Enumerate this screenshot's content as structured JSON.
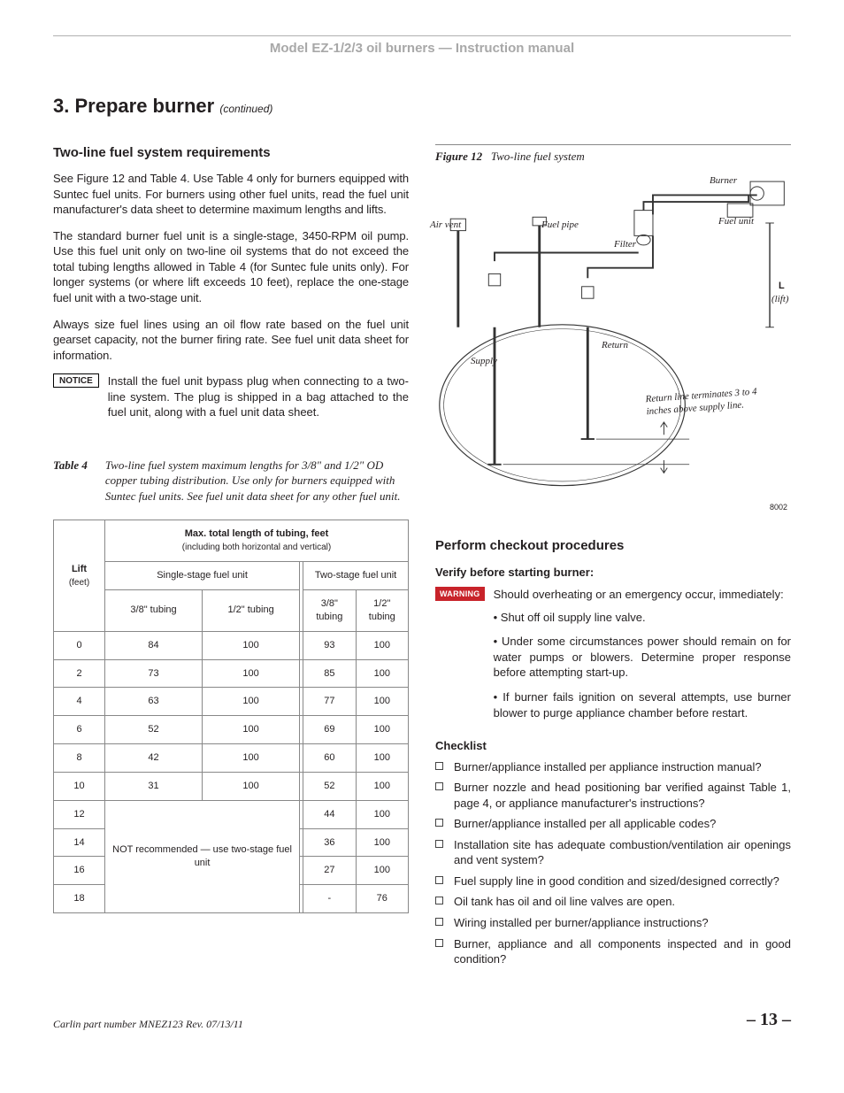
{
  "header": "Model EZ-1/2/3 oil burners — Instruction manual",
  "section": {
    "num": "3.",
    "title": "Prepare burner",
    "cont": "(continued)"
  },
  "left": {
    "h": "Two-line fuel system requirements",
    "p1": "See Figure 12 and Table 4. Use Table 4 only for burners equipped with Suntec fuel units. For burners using other fuel units, read the fuel unit manufacturer's data sheet to determine maximum lengths and lifts.",
    "p2": "The standard burner fuel unit is a single-stage, 3450-RPM oil pump. Use this fuel unit only on two-line oil systems that do not exceed the total tubing lengths allowed in Table 4 (for Suntec fule units only). For longer systems (or where lift exceeds 10 feet), replace the one-stage fuel unit with a two-stage unit.",
    "p3": "Always size fuel lines using an oil flow rate based on the fuel unit gearset capacity, not the burner firing rate. See fuel unit data sheet for information.",
    "notice_label": "NOTICE",
    "notice_text": "Install the fuel unit bypass plug when connecting to a two-line system. The plug is shipped in a bag attached to the fuel unit, along with a fuel unit data sheet.",
    "table_label": "Table 4",
    "table_caption": "Two-line fuel system maximum lengths for 3/8\" and 1/2\" OD copper tubing distribution. Use only for burners equipped with Suntec fuel units. See fuel unit data sheet for any other fuel unit.",
    "table": {
      "lift_title": "Lift",
      "lift_sub": "(feet)",
      "max_title": "Max. total length of tubing, feet",
      "max_sub": "(including both horizontal and vertical)",
      "single": "Single-stage fuel unit",
      "two": "Two-stage fuel unit",
      "c38": "3/8\" tubing",
      "c12": "1/2\" tubing",
      "not_rec": "NOT recommended — use two-stage fuel unit",
      "rows": [
        {
          "lift": "0",
          "s38": "84",
          "s12": "100",
          "t38": "93",
          "t12": "100"
        },
        {
          "lift": "2",
          "s38": "73",
          "s12": "100",
          "t38": "85",
          "t12": "100"
        },
        {
          "lift": "4",
          "s38": "63",
          "s12": "100",
          "t38": "77",
          "t12": "100"
        },
        {
          "lift": "6",
          "s38": "52",
          "s12": "100",
          "t38": "69",
          "t12": "100"
        },
        {
          "lift": "8",
          "s38": "42",
          "s12": "100",
          "t38": "60",
          "t12": "100"
        },
        {
          "lift": "10",
          "s38": "31",
          "s12": "100",
          "t38": "52",
          "t12": "100"
        },
        {
          "lift": "12",
          "t38": "44",
          "t12": "100"
        },
        {
          "lift": "14",
          "t38": "36",
          "t12": "100"
        },
        {
          "lift": "16",
          "t38": "27",
          "t12": "100"
        },
        {
          "lift": "18",
          "t38": "-",
          "t12": "76"
        }
      ]
    }
  },
  "right": {
    "fig_label": "Figure 12",
    "fig_title": "Two-line fuel system",
    "fig": {
      "burner": "Burner",
      "air_vent": "Air vent",
      "fuel_pipe": "Fuel pipe",
      "fuel_unit": "Fuel unit",
      "filter": "Filter",
      "supply": "Supply",
      "return": "Return",
      "lift_L": "L",
      "lift_txt": "(lift)",
      "return_note": "Return line terminates 3 to 4 inches above supply line.",
      "code": "8002"
    },
    "h2": "Perform checkout procedures",
    "verify": "Verify before starting burner:",
    "warn_label": "WARNING",
    "warn_intro": "Should overheating or an emergency occur, immediately:",
    "warn_items": [
      "Shut off oil supply line valve.",
      "Under some circumstances power should remain on for water pumps or blowers. Determine proper response before attempting start-up.",
      "If burner fails ignition on several attempts, use burner blower to purge appliance chamber before restart."
    ],
    "checklist_h": "Checklist",
    "checklist": [
      "Burner/appliance installed per appliance instruction manual?",
      "Burner nozzle and head positioning bar verified against Table 1, page 4, or appliance manufacturer's instructions?",
      "Burner/appliance installed per all applicable codes?",
      "Installation site has adequate combustion/ventilation air openings and vent system?",
      "Fuel supply line in good condition and sized/designed correctly?",
      "Oil tank has oil and oil line valves are open.",
      "Wiring installed per burner/appliance instructions?",
      "Burner, appliance and all components inspected and in good condition?"
    ]
  },
  "footer": {
    "part": "Carlin part number MNEZ123 Rev. 07/13/11",
    "page": "– 13 –"
  }
}
